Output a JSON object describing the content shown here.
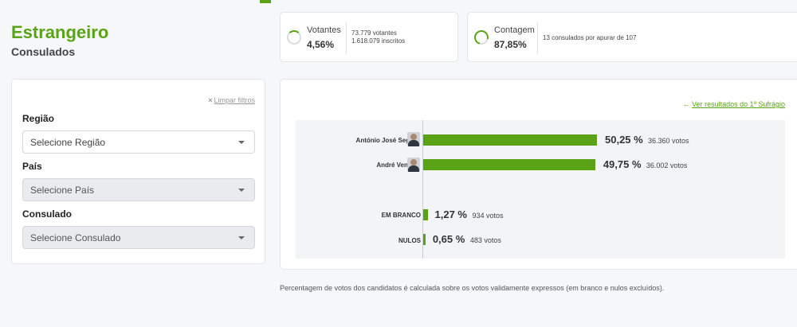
{
  "header": {
    "title": "Estrangeiro",
    "subtitle": "Consulados"
  },
  "stats": {
    "votantes": {
      "label": "Votantes",
      "value": "4,56%",
      "percent": 4.56,
      "detail_votantes": "73.779 votantes",
      "detail_inscritos": "1.618.079 inscritos"
    },
    "contagem": {
      "label": "Contagem",
      "value": "87,85%",
      "percent": 87.85,
      "detail": "13 consulados por apurar de 107"
    }
  },
  "filters": {
    "clear_icon": "×",
    "clear_label": "Limpar filtros",
    "regiao": {
      "label": "Região",
      "placeholder": "Selecione Região",
      "enabled": true
    },
    "pais": {
      "label": "País",
      "placeholder": "Selecione País",
      "enabled": false
    },
    "consulado": {
      "label": "Consulado",
      "placeholder": "Selecione Consulado",
      "enabled": false
    }
  },
  "results": {
    "prev_link_arrow": "←",
    "prev_link_label": "Ver resultados do 1º Sufrágio",
    "candidates": [
      {
        "name": "António José Seguro",
        "percent": 50.25,
        "percent_label": "50,25 %",
        "votes_label": "36.360 votos"
      },
      {
        "name": "André Ventura",
        "percent": 49.75,
        "percent_label": "49,75 %",
        "votes_label": "36.002 votos"
      }
    ],
    "others": [
      {
        "name": "EM BRANCO",
        "percent": 1.27,
        "percent_label": "1,27 %",
        "votes_label": "934 votos"
      },
      {
        "name": "NULOS",
        "percent": 0.65,
        "percent_label": "0,65 %",
        "votes_label": "483 votos"
      }
    ]
  },
  "footnote": "Percentagem de votos dos candidatos é calculada sobre os votos validamente expressos (em branco e nulos excluídos).",
  "colors": {
    "accent": "#5aa317",
    "bar": "#5aa317"
  }
}
